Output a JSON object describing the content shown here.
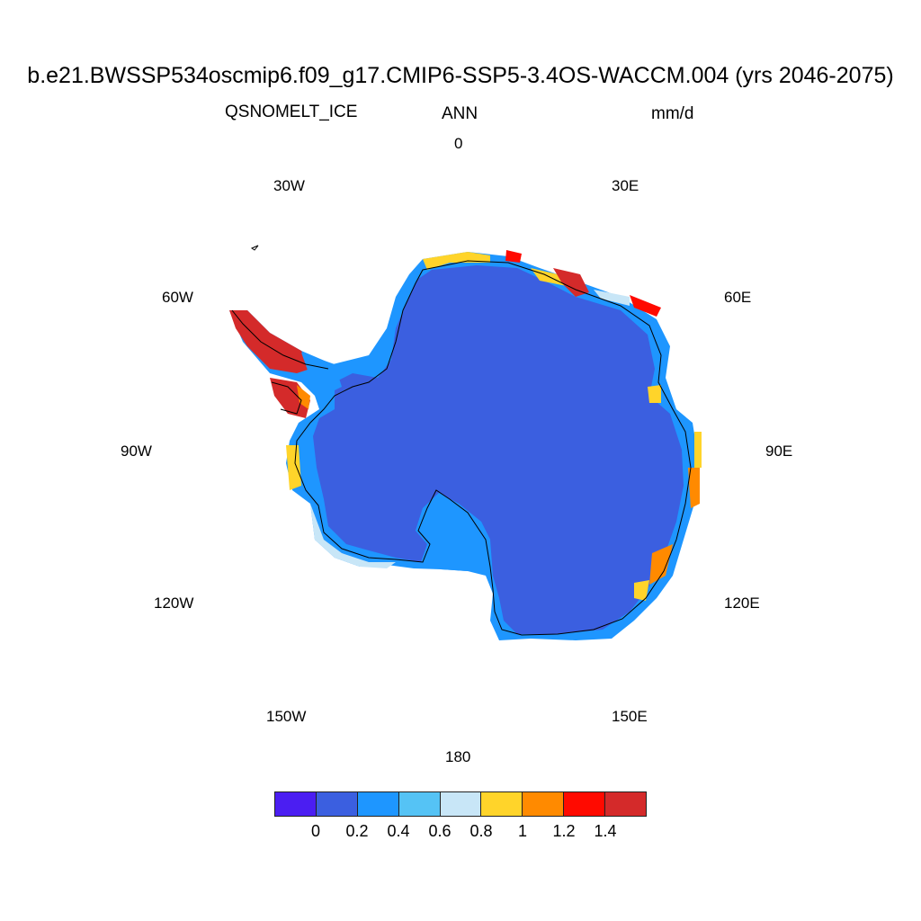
{
  "title": "b.e21.BWSSP534oscmip6.f09_g17.CMIP6-SSP5-3.4OS-WACCM.004 (yrs 2046-2075)",
  "variable": "QSNOMELT_ICE",
  "season": "ANN",
  "units": "mm/d",
  "longitude_labels": [
    "0",
    "30E",
    "60E",
    "90E",
    "120E",
    "150E",
    "180",
    "150W",
    "120W",
    "90W",
    "60W",
    "30W"
  ],
  "colorbar": {
    "colors": [
      "#4B1EF2",
      "#3B5FE0",
      "#1E96FF",
      "#55C3F5",
      "#C8E6F7",
      "#FFD42A",
      "#FF8A00",
      "#FF0A00",
      "#D42A2A"
    ],
    "tick_labels": [
      "0",
      "0.2",
      "0.4",
      "0.6",
      "0.8",
      "1",
      "1.2",
      "1.4"
    ]
  },
  "colors": {
    "ice_interior": "#3B5FE0",
    "coast_light_blue": "#1E96FF",
    "coast_cyan": "#55C3F5",
    "coast_pale": "#C8E6F7",
    "coast_yellow": "#FFD42A",
    "coast_orange": "#FF8A00",
    "coast_red": "#FF0A00",
    "coast_dark_red": "#D42A2A"
  }
}
